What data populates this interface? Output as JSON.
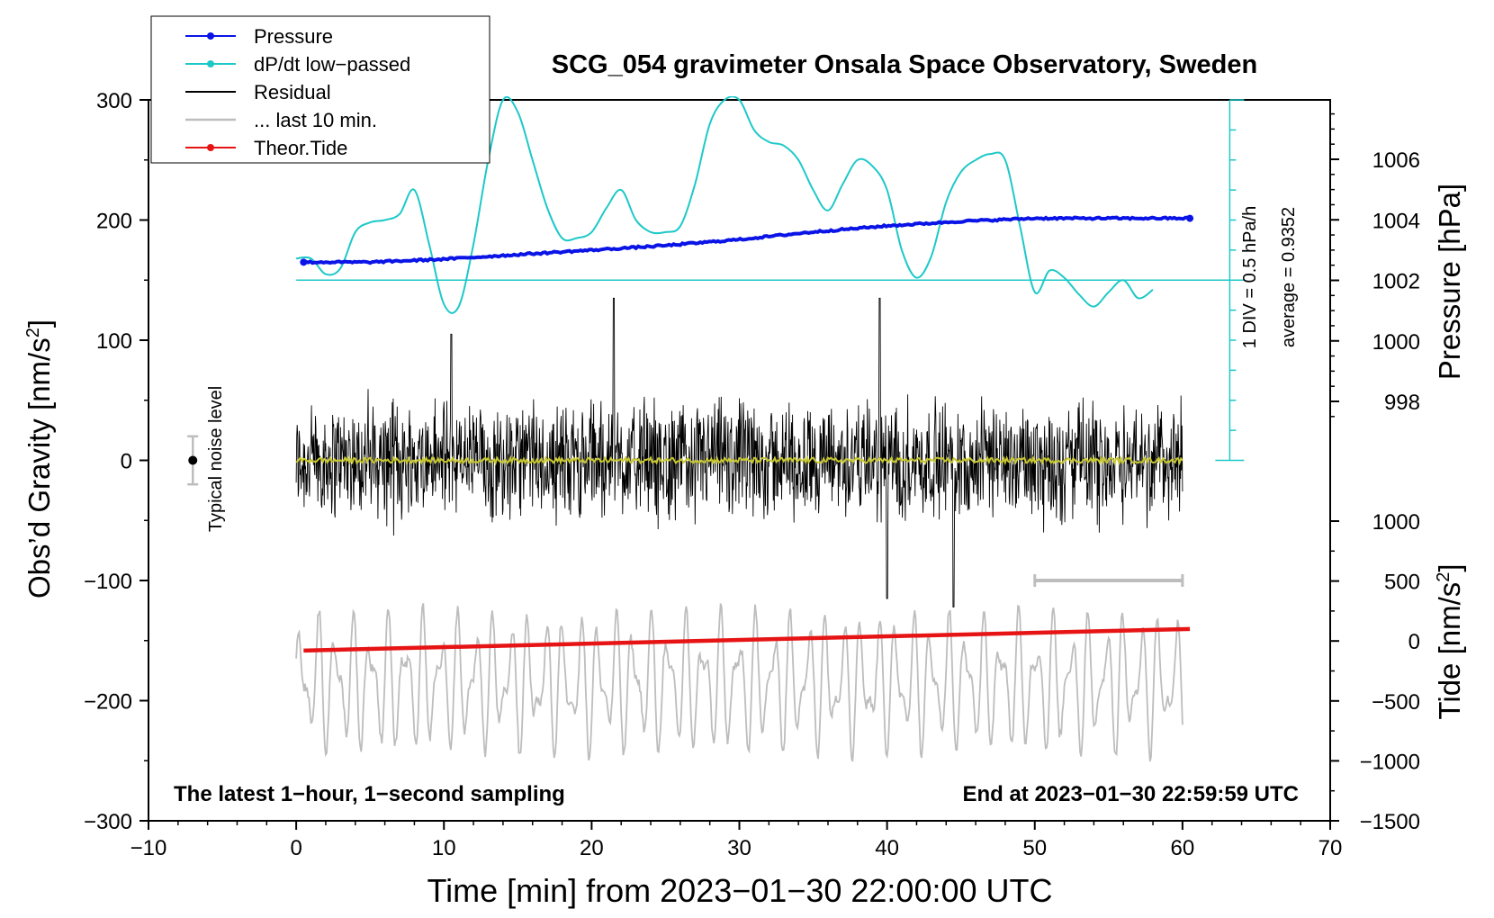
{
  "chart_data": {
    "type": "line",
    "title": "SCG_054 gravimeter Onsala Space Observatory, Sweden",
    "xlabel": "Time [min] from 2023−01−30 22:00:00 UTC",
    "ylabel_left_main": "Obs’d Gravity [nm/s",
    "ylabel_left_sup": "2",
    "ylabel_left_end": "]",
    "ylabel_right_top": "Pressure [hPa]",
    "ylabel_right_bottom_main": "Tide [nm/s",
    "ylabel_right_bottom_sup": "2",
    "ylabel_right_bottom_end": "]",
    "xlim": [
      -10,
      70
    ],
    "ylim_left": [
      -300,
      300
    ],
    "x_ticks": [
      "−10",
      "0",
      "10",
      "20",
      "30",
      "40",
      "50",
      "60",
      "70"
    ],
    "y_ticks_left": [
      "−300",
      "−200",
      "−100",
      "0",
      "100",
      "200",
      "300"
    ],
    "pressure_ticks": [
      "1006",
      "1004",
      "1002",
      "1000",
      "998"
    ],
    "tide_ticks": [
      "1000",
      "500",
      "0",
      "−500",
      "−1000",
      "−1500"
    ],
    "colors": {
      "pressure": "#0a14e6",
      "dpdt": "#1ec8c8",
      "residual": "#000000",
      "last10": "#bdbdbd",
      "tide": "#e61414",
      "smooth": "#c8c832"
    },
    "legend": [
      {
        "label": "Pressure",
        "style": "line-dot",
        "color_key": "pressure"
      },
      {
        "label": "dP/dt low−passed",
        "style": "line-dot",
        "color_key": "dpdt"
      },
      {
        "label": "Residual",
        "style": "line",
        "color_key": "residual"
      },
      {
        "label": "... last 10 min.",
        "style": "line",
        "color_key": "last10"
      },
      {
        "label": "Theor.Tide",
        "style": "line-dot",
        "color_key": "tide"
      }
    ],
    "pressure_series": {
      "name": "Pressure",
      "unit": "hPa",
      "x": [
        0.5,
        5,
        10,
        15,
        20,
        25,
        30,
        35,
        40,
        45,
        50,
        55,
        60.5
      ],
      "y": [
        1002.6,
        1002.6,
        1002.7,
        1002.85,
        1003.0,
        1003.15,
        1003.35,
        1003.6,
        1003.8,
        1003.95,
        1004.05,
        1004.05,
        1004.05
      ]
    },
    "dpdt_series": {
      "name": "dP/dt low-passed",
      "x": [
        0,
        1,
        2,
        3,
        4,
        5,
        6,
        7,
        8,
        9,
        10,
        11,
        12,
        13,
        14,
        15,
        16,
        17,
        18,
        19,
        20,
        21,
        22,
        23,
        24,
        25,
        26,
        27,
        28,
        29,
        30,
        31,
        32,
        33,
        34,
        35,
        36,
        37,
        38,
        39,
        40,
        41,
        42,
        43,
        44,
        45,
        46,
        47,
        48,
        49,
        50,
        51,
        52,
        53,
        54,
        55,
        56,
        57,
        58
      ],
      "y": [
        168,
        168,
        155,
        160,
        190,
        198,
        200,
        205,
        225,
        180,
        130,
        128,
        180,
        250,
        300,
        290,
        250,
        210,
        185,
        185,
        190,
        210,
        225,
        200,
        190,
        190,
        195,
        230,
        280,
        300,
        300,
        275,
        265,
        262,
        250,
        225,
        208,
        230,
        250,
        245,
        225,
        175,
        152,
        170,
        215,
        240,
        250,
        255,
        250,
        195,
        140,
        158,
        152,
        138,
        128,
        140,
        150,
        135,
        142
      ]
    },
    "dpdt_baseline": 150,
    "dpdt_baseline_text": "average = 0.9352",
    "dpdt_scale_text": "1 DIV = 0.5 hPa/h",
    "dpdt_scale_range": [
      0,
      300
    ],
    "residual_series": {
      "name": "Residual",
      "x_range": [
        0,
        60
      ],
      "typical_amplitude": 45,
      "peak_values": [
        {
          "x": 21.5,
          "y": 135
        },
        {
          "x": 39.5,
          "y": 135
        },
        {
          "x": 44.5,
          "y": -122
        },
        {
          "x": 40,
          "y": -115
        },
        {
          "x": 10.5,
          "y": 105
        }
      ]
    },
    "smoothed_residual": {
      "x_range": [
        0,
        60
      ],
      "y": 0
    },
    "last10_series": {
      "name": "... last 10 min.",
      "x_range": [
        0,
        60
      ],
      "center": -185,
      "amplitude": 55
    },
    "last10_bracket": {
      "x_range": [
        50,
        60
      ],
      "y": -100
    },
    "tide_series": {
      "name": "Theor.Tide",
      "unit": "nm/s2",
      "x": [
        0.5,
        60.5
      ],
      "y": [
        -80,
        100
      ]
    },
    "noise_level": {
      "x": -7,
      "y": 0,
      "half_range": 20,
      "label": "Typical noise level"
    },
    "annotations": {
      "bottom_left": "The latest 1−hour, 1−second sampling",
      "bottom_right": "End at 2023−01−30 22:59:59 UTC"
    }
  }
}
